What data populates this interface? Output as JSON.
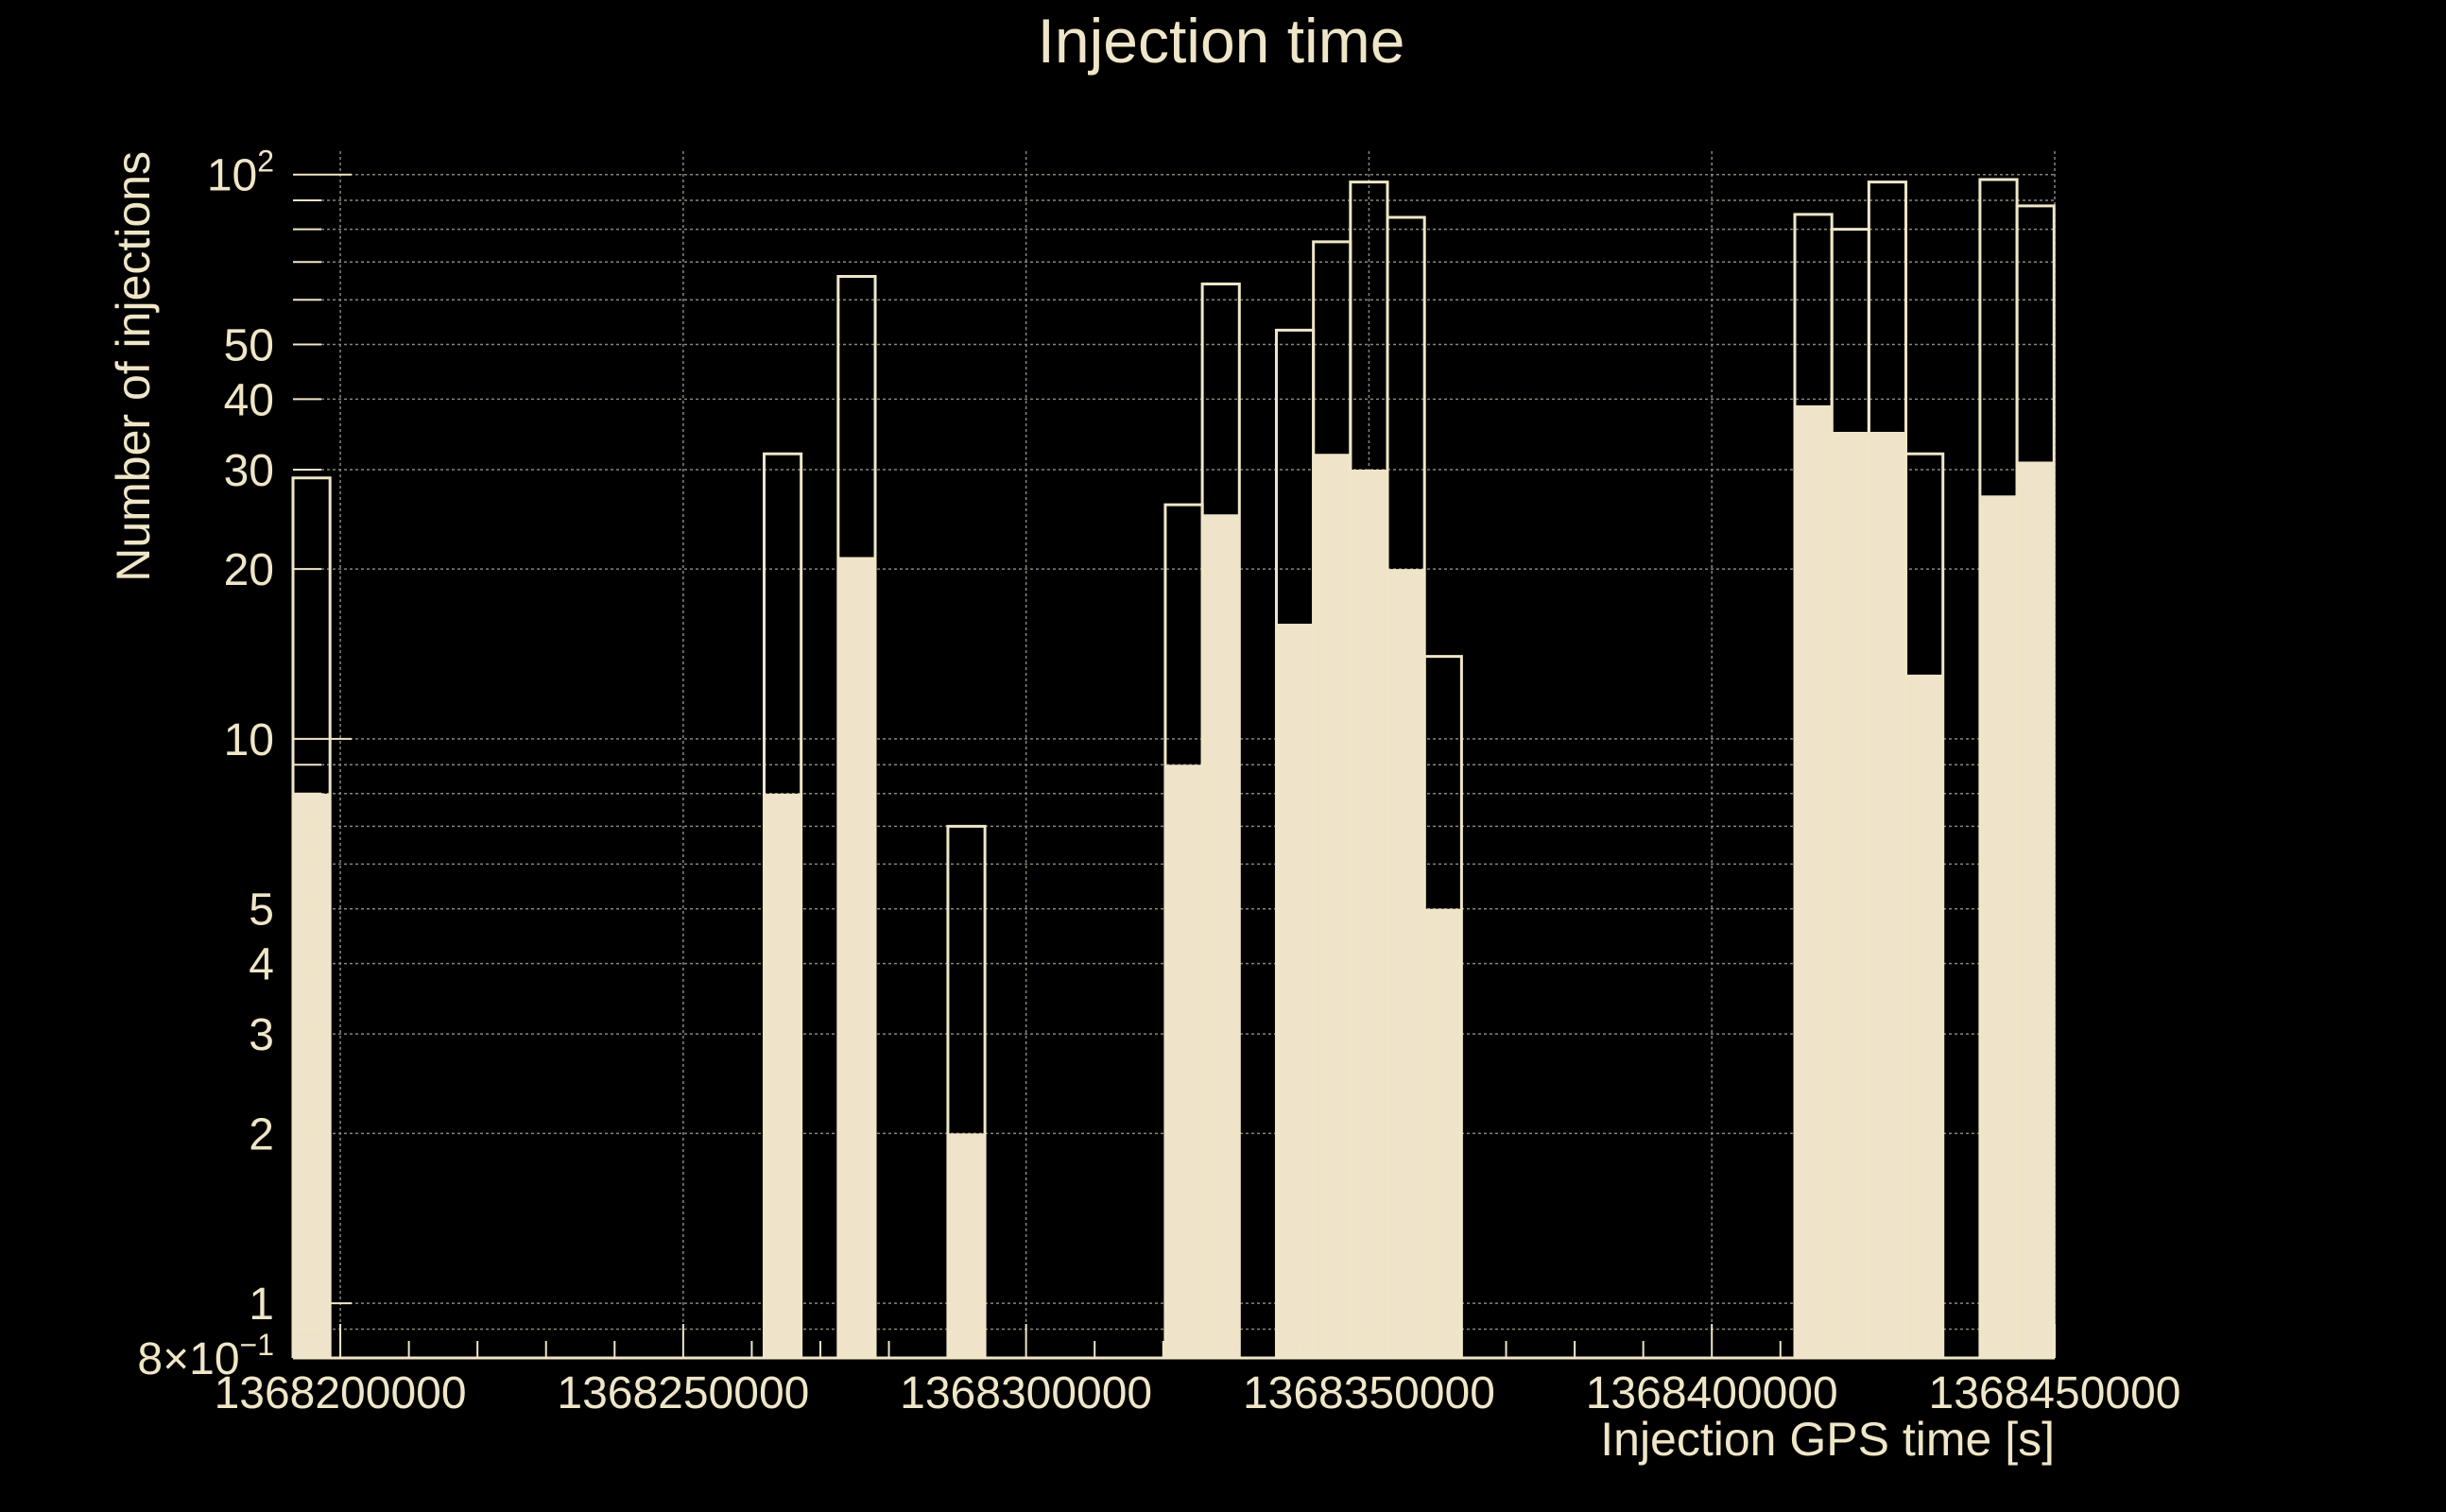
{
  "chart_data": {
    "type": "bar",
    "title": "Injection time",
    "xlabel": "Injection GPS time [s]",
    "ylabel": "Number of injections",
    "y_scale": "log",
    "ylim": [
      0.8,
      110
    ],
    "xlim": [
      1368193100,
      1368450000
    ],
    "bin_width": 5400,
    "grid": true,
    "x_ticks": [
      1368200000,
      1368250000,
      1368300000,
      1368350000,
      1368400000,
      1368450000
    ],
    "x_tick_labels": [
      "1368200000",
      "1368250000",
      "1368300000",
      "1368350000",
      "1368400000",
      "1368450000"
    ],
    "y_tick_labels": [
      {
        "value": 100,
        "base": "10",
        "exp": "2"
      },
      {
        "value": 50,
        "text": "50"
      },
      {
        "value": 40,
        "text": "40"
      },
      {
        "value": 30,
        "text": "30"
      },
      {
        "value": 20,
        "text": "20"
      },
      {
        "value": 10,
        "text": "10"
      },
      {
        "value": 5,
        "text": "5"
      },
      {
        "value": 4,
        "text": "4"
      },
      {
        "value": 3,
        "text": "3"
      },
      {
        "value": 2,
        "text": "2"
      },
      {
        "value": 1,
        "text": "1"
      },
      {
        "value": 0.8,
        "base": "8×10",
        "exp": "−1"
      }
    ],
    "bin_starts": [
      1368193100,
      1368261800,
      1368267200,
      1368272600,
      1368288600,
      1368314900,
      1368320300,
      1368325700,
      1368331100,
      1368336500,
      1368341900,
      1368347300,
      1368352700,
      1368358100,
      1368363500,
      1368368900,
      1368374300,
      1368379700,
      1368385100,
      1368390500,
      1368395900,
      1368401300,
      1368406700,
      1368412100,
      1368417500,
      1368422900,
      1368428300,
      1368433700,
      1368439100,
      1368444500
    ],
    "series": [
      {
        "role": "all",
        "style": "outline",
        "values": [
          29,
          32,
          0,
          66,
          7,
          0,
          26,
          64,
          0,
          53,
          76,
          97,
          84,
          14,
          0,
          0,
          0,
          0,
          0,
          0,
          0,
          0,
          0,
          85,
          80,
          97,
          32,
          0,
          98,
          88
        ]
      },
      {
        "role": "subset",
        "style": "filled",
        "values": [
          8,
          8,
          0,
          21,
          2,
          0,
          9,
          25,
          0,
          16,
          32,
          30,
          20,
          5,
          0,
          0,
          0,
          0,
          0,
          0,
          0,
          0,
          0,
          39,
          35,
          35,
          13,
          0,
          27,
          31
        ]
      }
    ]
  },
  "colors": {
    "background": "#000000",
    "foreground": "#efe6c8",
    "fill": "#efe4c9",
    "grid": "#8a8578"
  }
}
